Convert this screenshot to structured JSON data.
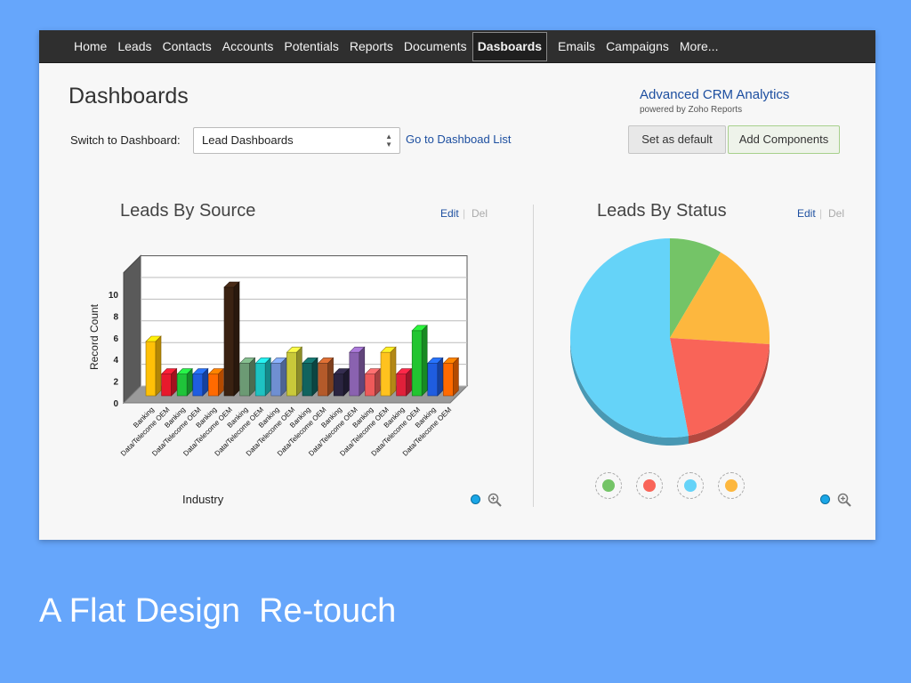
{
  "nav": [
    "Home",
    "Leads",
    "Contacts",
    "Accounts",
    "Potentials",
    "Reports",
    "Documents",
    "Dasboards",
    "Emails",
    "Campaigns",
    "More..."
  ],
  "nav_active_index": 7,
  "page_title": "Dashboards",
  "brand": {
    "title": "Advanced CRM Analytics",
    "subtitle": "powered by Zoho Reports"
  },
  "switch": {
    "label": "Switch to Dashboard:",
    "value": "Lead Dashboards",
    "link": "Go to Dashboad List"
  },
  "buttons": {
    "set_default": "Set as default",
    "add_components": "Add Components"
  },
  "bar_panel": {
    "title": "Leads By Source",
    "edit": "Edit",
    "del": "Del",
    "separator": "|"
  },
  "pie_panel": {
    "title": "Leads By Status",
    "edit": "Edit",
    "del": "Del",
    "separator": "|"
  },
  "caption": "A Flat Design  Re-touch",
  "icons": {
    "legend_dot": "legend-dot-icon",
    "zoom": "zoom-in-icon",
    "select_arrows": "select-arrows-icon"
  },
  "chart_data": [
    {
      "type": "bar",
      "title": "Leads By Source",
      "xlabel": "Industry",
      "ylabel": "Record Count",
      "ylim": [
        0,
        10
      ],
      "yticks": [
        0,
        2,
        4,
        6,
        8,
        10
      ],
      "categories": [
        "Banking",
        "Data/Telecome OEM",
        "Banking",
        "Data/Telecome OEM",
        "Banking",
        "Data/Telecome OEM",
        "Banking",
        "Data/Telecome OEM",
        "Banking",
        "Data/Telecome OEM",
        "Banking",
        "Data/Telecome OEM",
        "Banking",
        "Data/Telecome OEM",
        "Banking",
        "Data/Telecome OEM",
        "Banking",
        "Data/Telecome OEM",
        "Banking",
        "Data/Telecome OEM"
      ],
      "values": [
        5,
        2,
        2,
        2,
        2,
        10,
        3,
        3,
        3,
        4,
        3,
        3,
        2,
        4,
        2,
        4,
        2,
        6,
        3,
        3
      ],
      "colors": [
        "#ffc107",
        "#e8192c",
        "#1fc43a",
        "#1f5de0",
        "#ff6a00",
        "#3a2212",
        "#6c9a74",
        "#1ec2c2",
        "#6f8fd2",
        "#c9c93a",
        "#11635e",
        "#b45a2a",
        "#2a2440",
        "#8a62b0",
        "#ee5a5a",
        "#ffc21e",
        "#e0203a",
        "#22c531",
        "#1f5de0",
        "#ff6a00"
      ],
      "grid": true,
      "legend": "none"
    },
    {
      "type": "pie",
      "title": "Leads By Status",
      "values": [
        8.5,
        17.5,
        21,
        53
      ],
      "colors": [
        "#74c467",
        "#fdb73e",
        "#f96458",
        "#65d3f8"
      ],
      "legend": "bottom"
    }
  ]
}
